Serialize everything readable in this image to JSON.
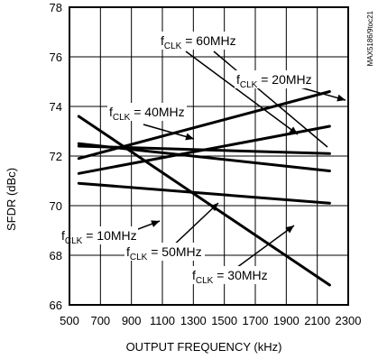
{
  "chart_data": {
    "type": "line",
    "title": "",
    "xlabel": "OUTPUT FREQUENCY (kHz)",
    "ylabel": "SFDR (dBc)",
    "xlim": [
      500,
      2300
    ],
    "ylim": [
      66,
      78
    ],
    "x_ticks": [
      500,
      700,
      900,
      1100,
      1300,
      1500,
      1700,
      1900,
      2100,
      2300
    ],
    "y_ticks": [
      66,
      68,
      70,
      72,
      74,
      76,
      78
    ],
    "grid": true,
    "figure_id": "MAX5186/9toc21",
    "series": [
      {
        "name": "fCLK = 10MHz",
        "x": [
          560,
          2180
        ],
        "y": [
          70.9,
          70.1
        ]
      },
      {
        "name": "fCLK = 20MHz",
        "x": [
          560,
          2180
        ],
        "y": [
          72.5,
          71.4
        ]
      },
      {
        "name": "fCLK = 30MHz",
        "x": [
          560,
          2180
        ],
        "y": [
          73.6,
          66.8
        ]
      },
      {
        "name": "fCLK = 40MHz",
        "x": [
          560,
          2180
        ],
        "y": [
          71.9,
          74.6
        ]
      },
      {
        "name": "fCLK = 50MHz",
        "x": [
          560,
          2180
        ],
        "y": [
          71.3,
          73.2
        ]
      },
      {
        "name": "fCLK = 60MHz",
        "x": [
          560,
          2180
        ],
        "y": [
          72.4,
          72.1
        ]
      }
    ],
    "annotations": [
      {
        "sub": "CLK",
        "suffix": " = 60MHz",
        "target": "fCLK = 60MHz"
      },
      {
        "sub": "CLK",
        "suffix": " = 20MHz",
        "target": "fCLK = 20MHz"
      },
      {
        "sub": "CLK",
        "suffix": " = 40MHz",
        "target": "fCLK = 40MHz"
      },
      {
        "sub": "CLK",
        "suffix": " = 10MHz",
        "target": "fCLK = 10MHz"
      },
      {
        "sub": "CLK",
        "suffix": " = 50MHz",
        "target": "fCLK = 50MHz"
      },
      {
        "sub": "CLK",
        "suffix": " = 30MHz",
        "target": "fCLK = 30MHz"
      }
    ]
  }
}
